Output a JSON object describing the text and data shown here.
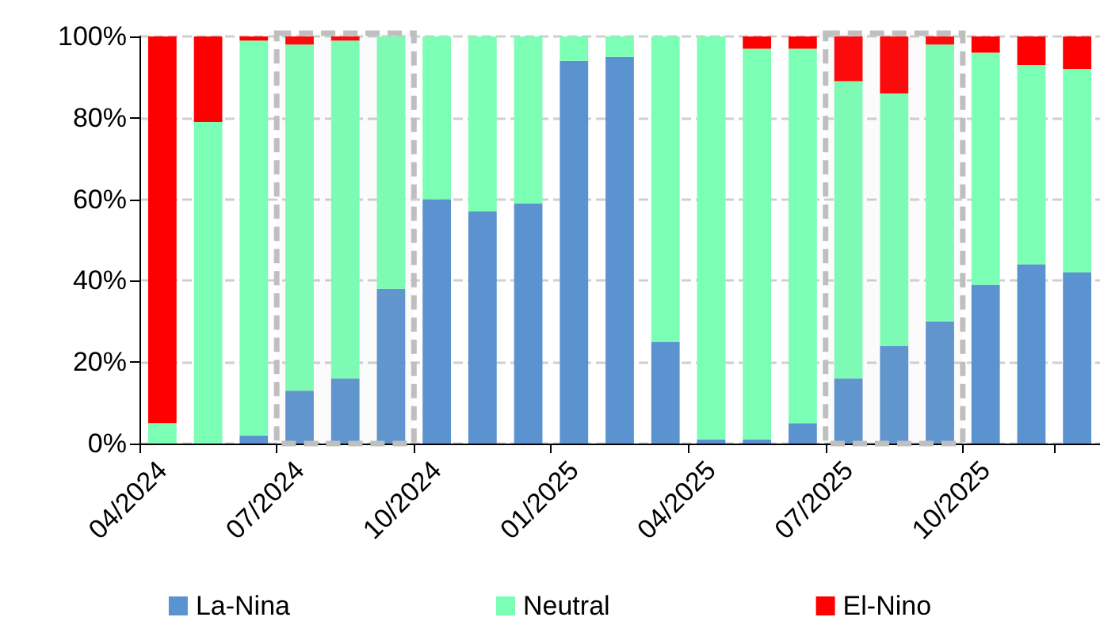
{
  "chart_data": {
    "type": "bar",
    "stacked": true,
    "categories": [
      "04/2024",
      null,
      null,
      "07/2024",
      null,
      null,
      "10/2024",
      null,
      null,
      "01/2025",
      null,
      null,
      "04/2025",
      null,
      null,
      "07/2025",
      null,
      null,
      "10/2025",
      null,
      null
    ],
    "series": [
      {
        "name": "La-Nina",
        "color": "#5b93d0",
        "values": [
          0,
          0,
          2,
          13,
          16,
          38,
          60,
          57,
          59,
          94,
          95,
          25,
          1,
          1,
          5,
          16,
          24,
          30,
          39,
          44,
          42
        ]
      },
      {
        "name": "Neutral",
        "color": "#7affb4",
        "values": [
          5,
          79,
          97,
          85,
          83,
          62,
          40,
          43,
          41,
          6,
          5,
          75,
          99,
          96,
          92,
          73,
          62,
          68,
          57,
          49,
          50
        ]
      },
      {
        "name": "El-Nino",
        "color": "#ff0000",
        "values": [
          95,
          21,
          1,
          2,
          1,
          0,
          0,
          0,
          0,
          0,
          0,
          0,
          0,
          3,
          3,
          11,
          14,
          2,
          4,
          7,
          8
        ]
      }
    ],
    "ylim": [
      0,
      100
    ],
    "yticks": [
      {
        "value": 0,
        "label": "0%"
      },
      {
        "value": 20,
        "label": "20%"
      },
      {
        "value": 40,
        "label": "40%"
      },
      {
        "value": 60,
        "label": "60%"
      },
      {
        "value": 80,
        "label": "80%"
      },
      {
        "value": 100,
        "label": "100%"
      }
    ],
    "grid": "y",
    "legend": "bottom",
    "bands": [
      {
        "axis": "x",
        "from": "07/2024",
        "to": "10/2024",
        "color": "#bfbfbf"
      },
      {
        "axis": "x",
        "from": "07/2025",
        "to": "10/2025",
        "color": "#bfbfbf"
      }
    ]
  }
}
